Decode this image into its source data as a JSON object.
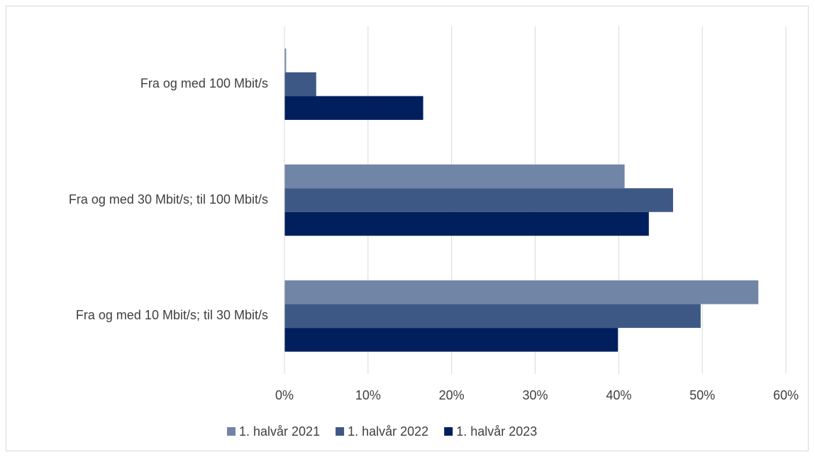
{
  "chart_data": {
    "type": "hbar",
    "categories": [
      "Fra og med 100 Mbit/s",
      "Fra og med 30 Mbit/s; til 100 Mbit/s",
      "Fra og med 10 Mbit/s; til 30 Mbit/s"
    ],
    "series": [
      {
        "name": "1. halvår 2021",
        "color": "#7185a6",
        "values": [
          0.2,
          40.7,
          56.7
        ]
      },
      {
        "name": "1. halvår 2022",
        "color": "#3e5886",
        "values": [
          3.8,
          46.5,
          49.8
        ]
      },
      {
        "name": "1. halvår 2023",
        "color": "#001f5c",
        "values": [
          16.6,
          43.6,
          39.9
        ]
      }
    ],
    "xlim": [
      0,
      60
    ],
    "xticks": [
      {
        "value": 0,
        "label": "0%"
      },
      {
        "value": 10,
        "label": "10%"
      },
      {
        "value": 20,
        "label": "20%"
      },
      {
        "value": 30,
        "label": "30%"
      },
      {
        "value": 40,
        "label": "40%"
      },
      {
        "value": 50,
        "label": "50%"
      },
      {
        "value": 60,
        "label": "60%"
      }
    ],
    "grid": true,
    "legend": "bottom"
  }
}
